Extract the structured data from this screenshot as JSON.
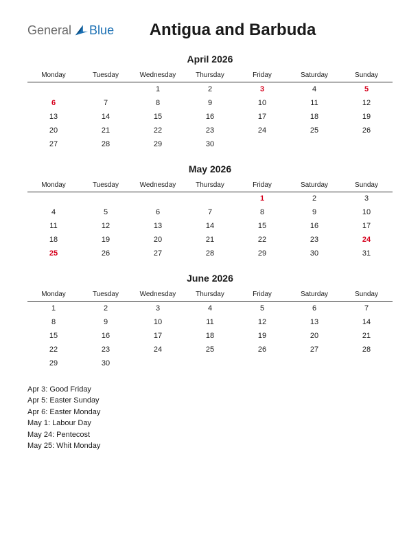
{
  "logo": {
    "general": "General",
    "blue": "Blue"
  },
  "country": "Antigua and Barbuda",
  "weekday_labels": [
    "Monday",
    "Tuesday",
    "Wednesday",
    "Thursday",
    "Friday",
    "Saturday",
    "Sunday"
  ],
  "holiday_color": "#d6001c",
  "text_color": "#1a1a1a",
  "logo_blue": "#1a6fb3",
  "logo_gray": "#6a6a6a",
  "months": [
    {
      "title": "April 2026",
      "weeks": [
        [
          {
            "d": ""
          },
          {
            "d": ""
          },
          {
            "d": "1"
          },
          {
            "d": "2"
          },
          {
            "d": "3",
            "h": true
          },
          {
            "d": "4"
          },
          {
            "d": "5",
            "h": true
          }
        ],
        [
          {
            "d": "6",
            "h": true
          },
          {
            "d": "7"
          },
          {
            "d": "8"
          },
          {
            "d": "9"
          },
          {
            "d": "10"
          },
          {
            "d": "11"
          },
          {
            "d": "12"
          }
        ],
        [
          {
            "d": "13"
          },
          {
            "d": "14"
          },
          {
            "d": "15"
          },
          {
            "d": "16"
          },
          {
            "d": "17"
          },
          {
            "d": "18"
          },
          {
            "d": "19"
          }
        ],
        [
          {
            "d": "20"
          },
          {
            "d": "21"
          },
          {
            "d": "22"
          },
          {
            "d": "23"
          },
          {
            "d": "24"
          },
          {
            "d": "25"
          },
          {
            "d": "26"
          }
        ],
        [
          {
            "d": "27"
          },
          {
            "d": "28"
          },
          {
            "d": "29"
          },
          {
            "d": "30"
          },
          {
            "d": ""
          },
          {
            "d": ""
          },
          {
            "d": ""
          }
        ]
      ]
    },
    {
      "title": "May 2026",
      "weeks": [
        [
          {
            "d": ""
          },
          {
            "d": ""
          },
          {
            "d": ""
          },
          {
            "d": ""
          },
          {
            "d": "1",
            "h": true
          },
          {
            "d": "2"
          },
          {
            "d": "3"
          }
        ],
        [
          {
            "d": "4"
          },
          {
            "d": "5"
          },
          {
            "d": "6"
          },
          {
            "d": "7"
          },
          {
            "d": "8"
          },
          {
            "d": "9"
          },
          {
            "d": "10"
          }
        ],
        [
          {
            "d": "11"
          },
          {
            "d": "12"
          },
          {
            "d": "13"
          },
          {
            "d": "14"
          },
          {
            "d": "15"
          },
          {
            "d": "16"
          },
          {
            "d": "17"
          }
        ],
        [
          {
            "d": "18"
          },
          {
            "d": "19"
          },
          {
            "d": "20"
          },
          {
            "d": "21"
          },
          {
            "d": "22"
          },
          {
            "d": "23"
          },
          {
            "d": "24",
            "h": true
          }
        ],
        [
          {
            "d": "25",
            "h": true
          },
          {
            "d": "26"
          },
          {
            "d": "27"
          },
          {
            "d": "28"
          },
          {
            "d": "29"
          },
          {
            "d": "30"
          },
          {
            "d": "31"
          }
        ]
      ]
    },
    {
      "title": "June 2026",
      "weeks": [
        [
          {
            "d": "1"
          },
          {
            "d": "2"
          },
          {
            "d": "3"
          },
          {
            "d": "4"
          },
          {
            "d": "5"
          },
          {
            "d": "6"
          },
          {
            "d": "7"
          }
        ],
        [
          {
            "d": "8"
          },
          {
            "d": "9"
          },
          {
            "d": "10"
          },
          {
            "d": "11"
          },
          {
            "d": "12"
          },
          {
            "d": "13"
          },
          {
            "d": "14"
          }
        ],
        [
          {
            "d": "15"
          },
          {
            "d": "16"
          },
          {
            "d": "17"
          },
          {
            "d": "18"
          },
          {
            "d": "19"
          },
          {
            "d": "20"
          },
          {
            "d": "21"
          }
        ],
        [
          {
            "d": "22"
          },
          {
            "d": "23"
          },
          {
            "d": "24"
          },
          {
            "d": "25"
          },
          {
            "d": "26"
          },
          {
            "d": "27"
          },
          {
            "d": "28"
          }
        ],
        [
          {
            "d": "29"
          },
          {
            "d": "30"
          },
          {
            "d": ""
          },
          {
            "d": ""
          },
          {
            "d": ""
          },
          {
            "d": ""
          },
          {
            "d": ""
          }
        ]
      ]
    }
  ],
  "holidays": [
    "Apr 3: Good Friday",
    "Apr 5: Easter Sunday",
    "Apr 6: Easter Monday",
    "May 1: Labour Day",
    "May 24: Pentecost",
    "May 25: Whit Monday"
  ]
}
